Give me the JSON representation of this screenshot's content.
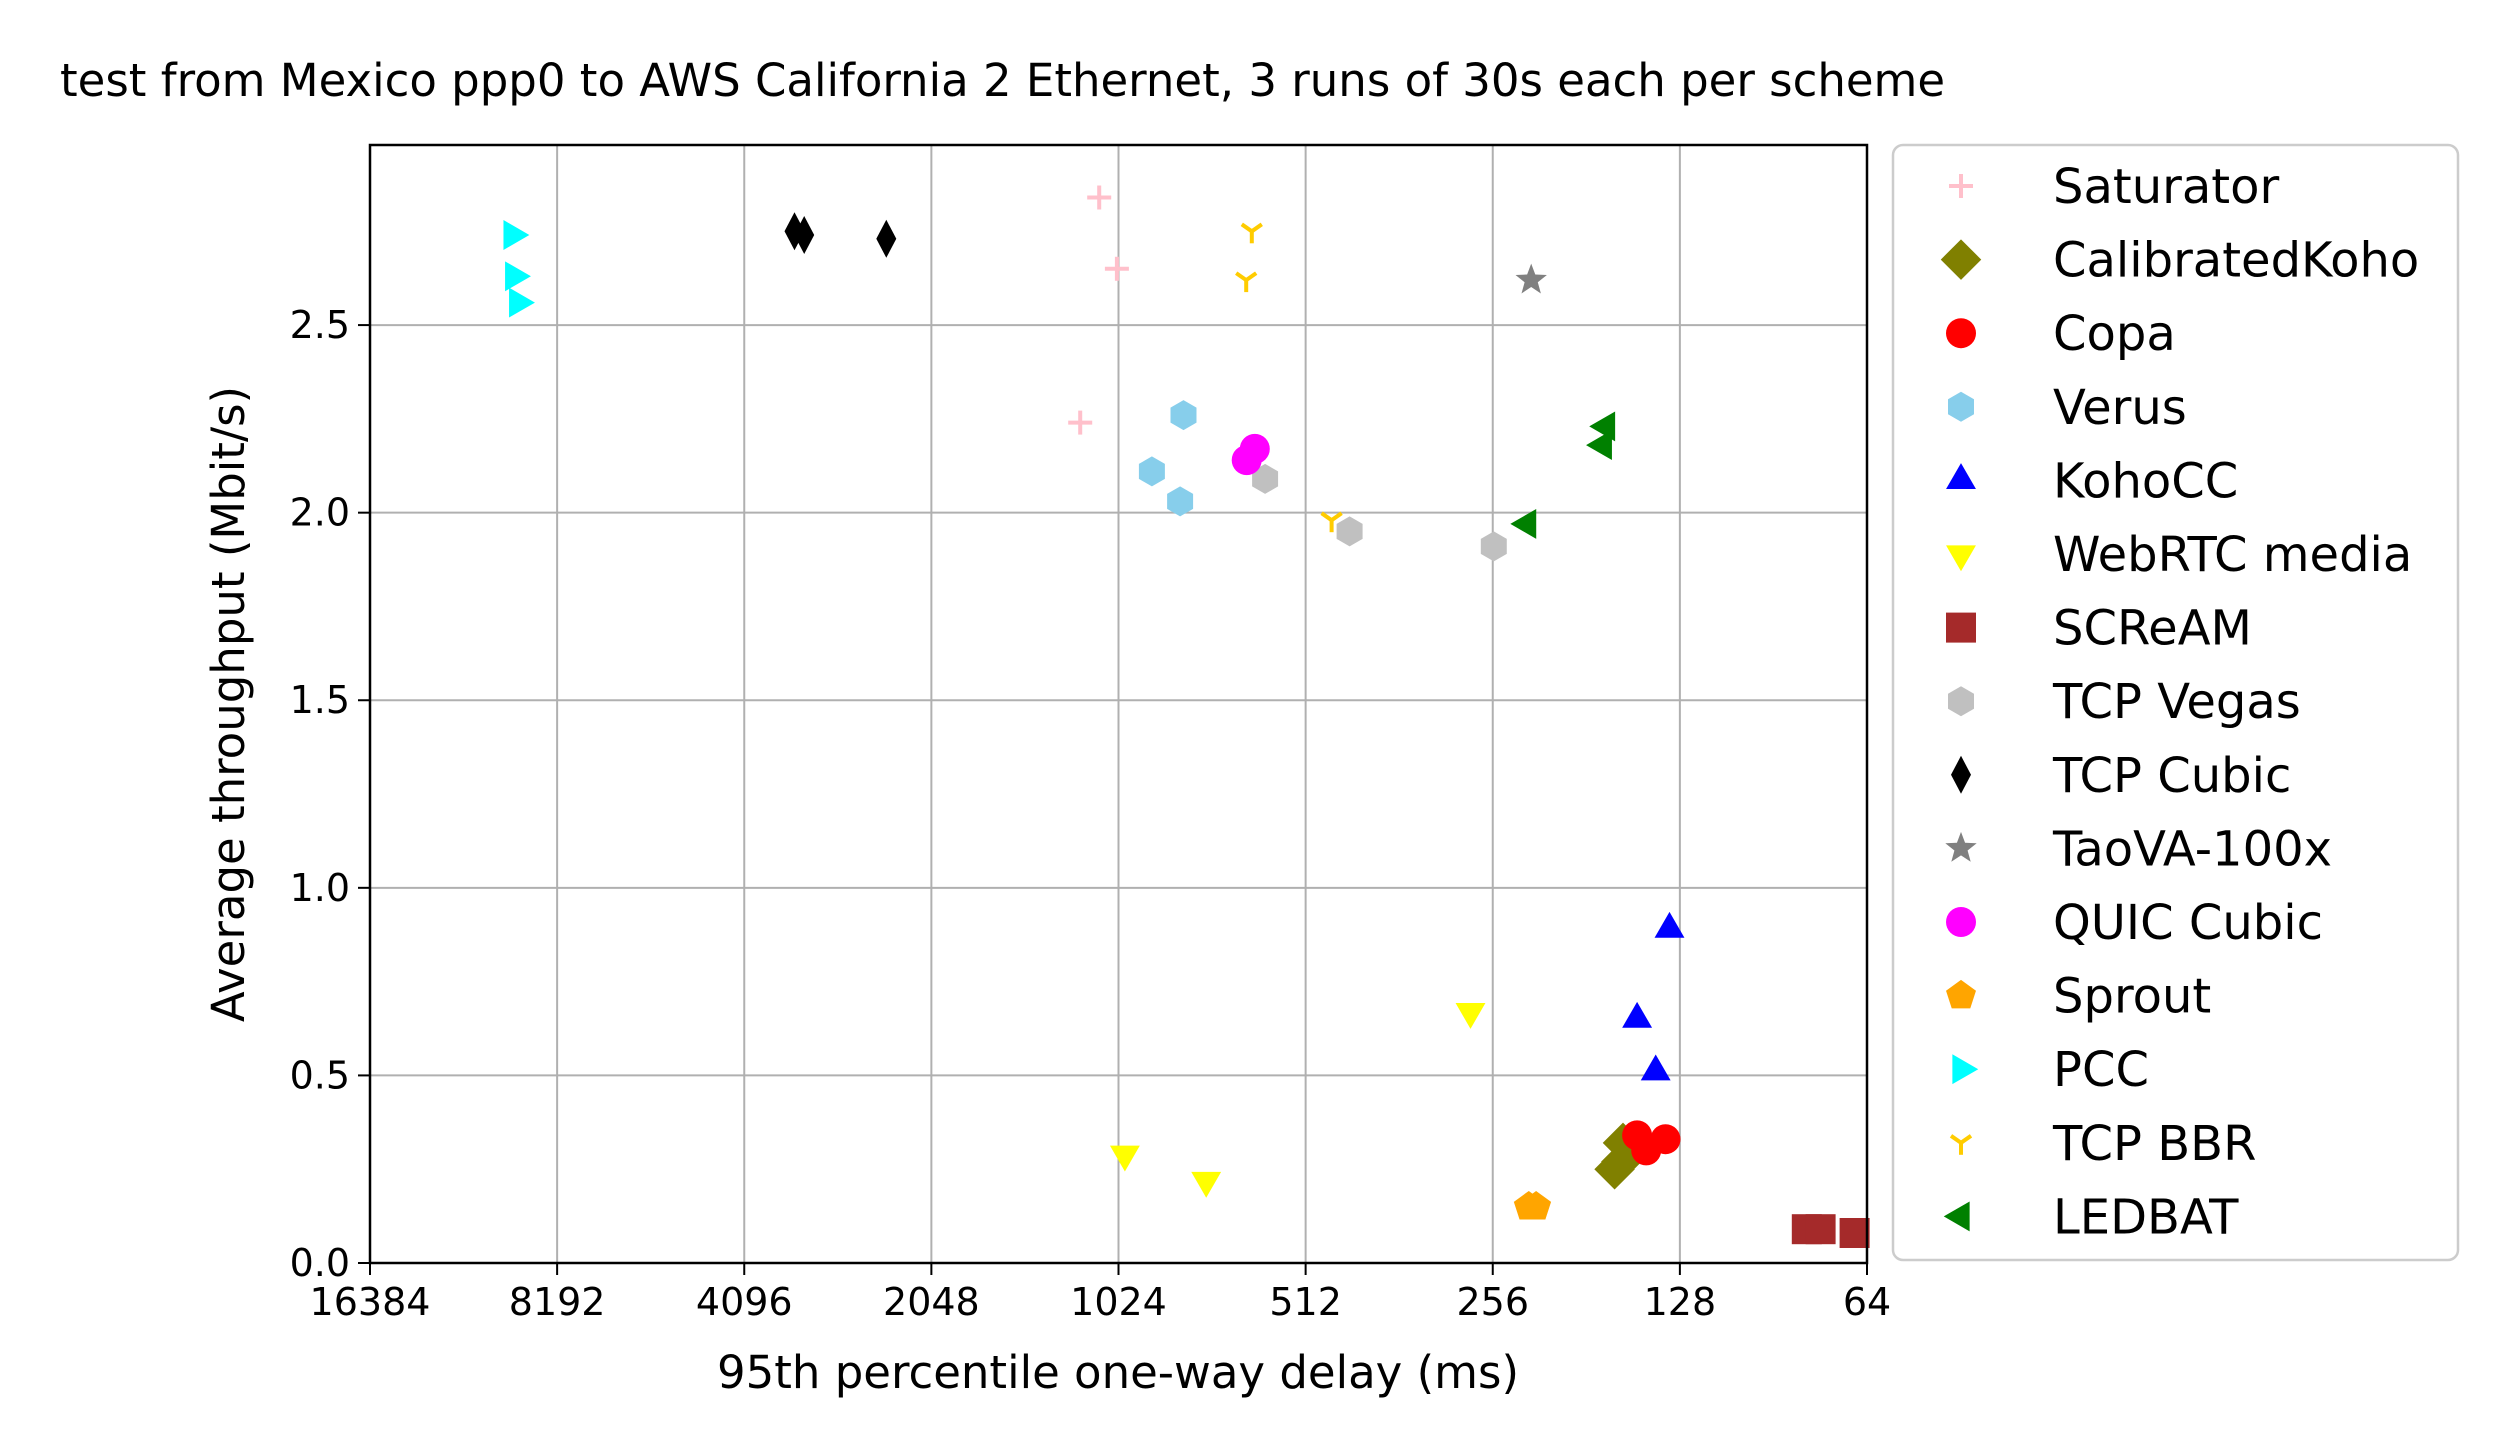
{
  "chart_data": {
    "type": "scatter",
    "title": "test from Mexico ppp0 to AWS California 2 Ethernet, 3 runs of 30s each per scheme",
    "xlabel": "95th percentile one-way delay (ms)",
    "ylabel": "Average throughput (Mbit/s)",
    "x_scale": "log2",
    "x_reversed": true,
    "xlim": [
      16384,
      64
    ],
    "ylim": [
      0,
      2.98
    ],
    "xticks": [
      16384,
      8192,
      4096,
      2048,
      1024,
      512,
      256,
      128,
      64
    ],
    "xtick_labels": [
      "16384",
      "8192",
      "4096",
      "2048",
      "1024",
      "512",
      "256",
      "128",
      "64"
    ],
    "yticks": [
      0,
      0.5,
      1,
      1.5,
      2,
      2.5
    ],
    "ytick_labels": [
      "0.0",
      "0.5",
      "1.0",
      "1.5",
      "2.0",
      "2.5"
    ],
    "grid": true,
    "legend_position": "outside-right",
    "series": [
      {
        "name": "Saturator",
        "marker": "plus",
        "color": "#ffc0cb",
        "points": [
          [
            1100,
            2.84
          ],
          [
            1030,
            2.65
          ],
          [
            1180,
            2.24
          ]
        ]
      },
      {
        "name": "CalibratedKoho",
        "marker": "diamond",
        "color": "#808000",
        "points": [
          [
            158,
            0.32
          ],
          [
            163,
            0.25
          ],
          [
            159,
            0.27
          ]
        ]
      },
      {
        "name": "Copa",
        "marker": "circle",
        "color": "#ff0000",
        "points": [
          [
            150,
            0.34
          ],
          [
            145,
            0.3
          ],
          [
            135,
            0.33
          ]
        ]
      },
      {
        "name": "Verus",
        "marker": "hexagon",
        "color": "#87ceeb",
        "points": [
          [
            905,
            2.11
          ],
          [
            805,
            2.26
          ],
          [
            815,
            2.03
          ]
        ]
      },
      {
        "name": "KohoCC",
        "marker": "triangle-up",
        "color": "#0000ff",
        "points": [
          [
            133,
            0.89
          ],
          [
            150,
            0.65
          ],
          [
            140,
            0.51
          ]
        ]
      },
      {
        "name": "WebRTC media",
        "marker": "triangle-down",
        "color": "#ffff00",
        "points": [
          [
            278,
            0.67
          ],
          [
            1000,
            0.29
          ],
          [
            740,
            0.22
          ]
        ]
      },
      {
        "name": "SCReAM",
        "marker": "square",
        "color": "#a52a2a",
        "points": [
          [
            80,
            0.09
          ],
          [
            76,
            0.09
          ],
          [
            67,
            0.08
          ]
        ]
      },
      {
        "name": "TCP Vegas",
        "marker": "hexagon",
        "color": "#c0c0c0",
        "points": [
          [
            595,
            2.09
          ],
          [
            435,
            1.95
          ],
          [
            255,
            1.91
          ]
        ]
      },
      {
        "name": "TCP Cubic",
        "marker": "diamond-thin",
        "color": "#000000",
        "points": [
          [
            3400,
            2.75
          ],
          [
            3280,
            2.74
          ],
          [
            2420,
            2.73
          ]
        ]
      },
      {
        "name": "TaoVA-100x",
        "marker": "star",
        "color": "#808080",
        "points": [
          [
            222,
            2.62
          ]
        ]
      },
      {
        "name": "QUIC Cubic",
        "marker": "circle",
        "color": "#ff00ff",
        "points": [
          [
            618,
            2.17
          ],
          [
            637,
            2.14
          ]
        ]
      },
      {
        "name": "Sprout",
        "marker": "pentagon",
        "color": "#ffa500",
        "points": [
          [
            224,
            0.15
          ],
          [
            218,
            0.15
          ]
        ]
      },
      {
        "name": "PCC",
        "marker": "triangle-right",
        "color": "#00ffff",
        "points": [
          [
            9680,
            2.74
          ],
          [
            9620,
            2.63
          ],
          [
            9480,
            2.56
          ]
        ]
      },
      {
        "name": "TCP BBR",
        "marker": "tri-down",
        "color": "#ffcc00",
        "points": [
          [
            625,
            2.75
          ],
          [
            638,
            2.62
          ],
          [
            465,
            1.98
          ]
        ]
      },
      {
        "name": "LEDBAT",
        "marker": "triangle-left",
        "color": "#008000",
        "points": [
          [
            168,
            2.23
          ],
          [
            170,
            2.18
          ],
          [
            225,
            1.97
          ]
        ]
      }
    ]
  }
}
